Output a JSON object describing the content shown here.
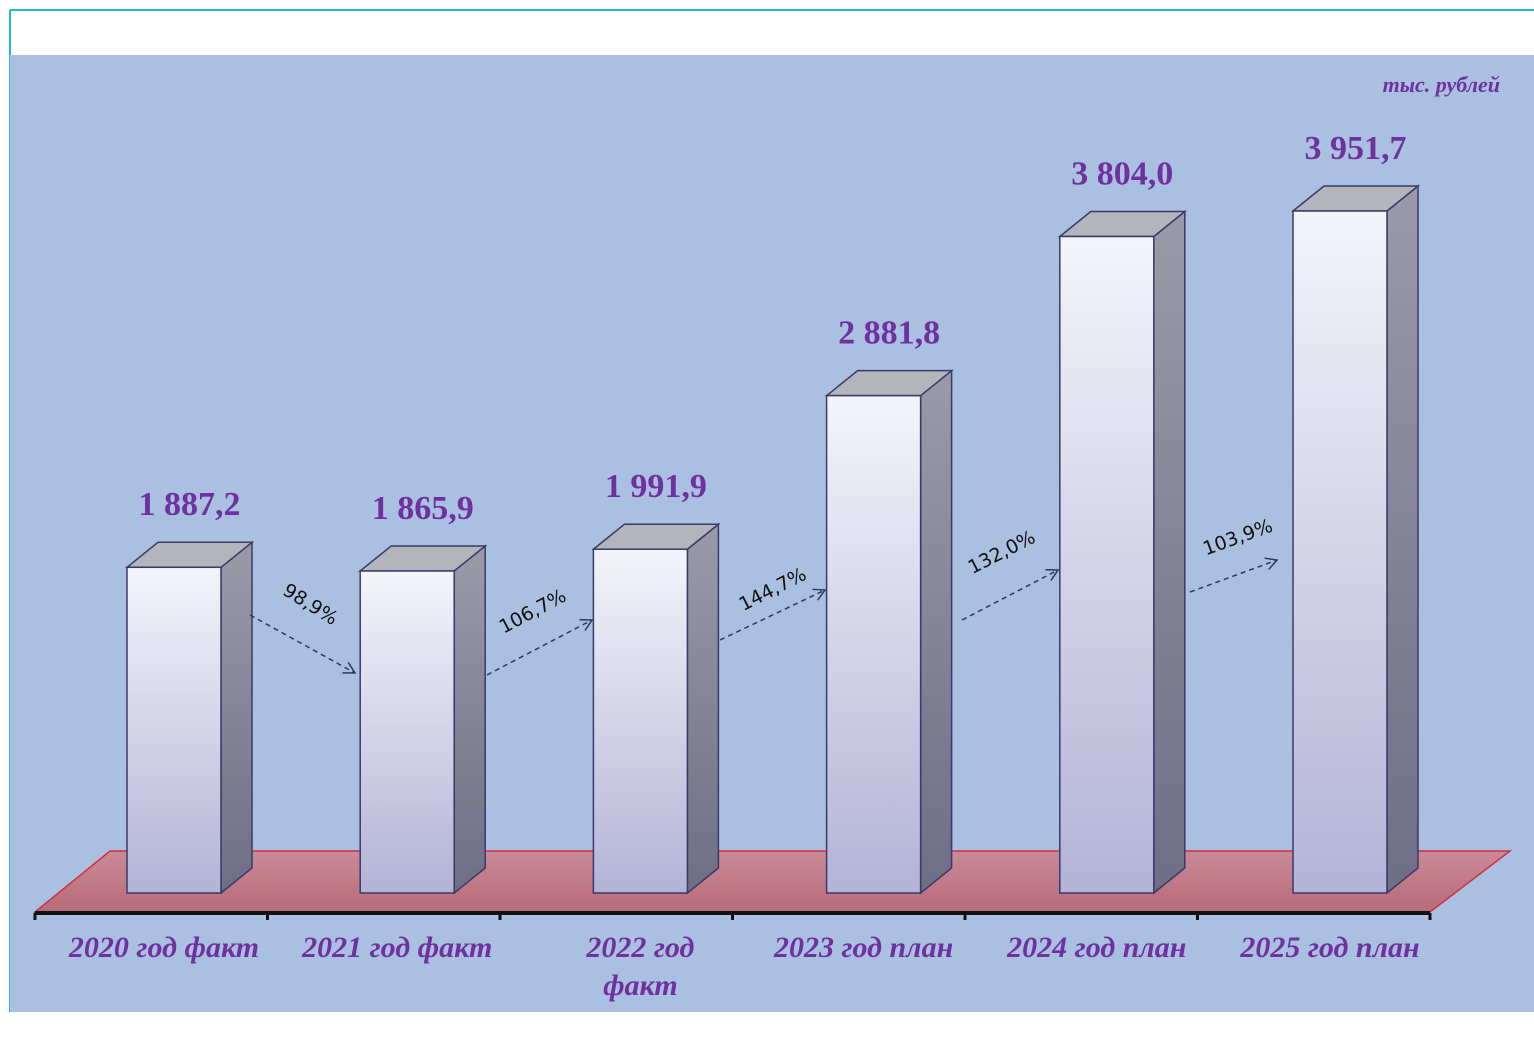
{
  "chart_data": {
    "type": "bar3d",
    "unit_label": "тыс. рублей",
    "categories": [
      "2020 год факт",
      "2021 год факт",
      "2022 год факт",
      "2023 год план",
      "2024 год план",
      "2025 год план"
    ],
    "values": [
      1887.2,
      1865.9,
      1991.9,
      2881.8,
      3804.0,
      3951.7
    ],
    "value_labels": [
      "1 887,2",
      "1 865,9",
      "1 991,9",
      "2 881,8",
      "3 804,0",
      "3 951,7"
    ],
    "growth_labels": [
      "98,9%",
      "106,7%",
      "144,7%",
      "132,0%",
      "103,9%"
    ],
    "label_color": "#7030a0"
  }
}
